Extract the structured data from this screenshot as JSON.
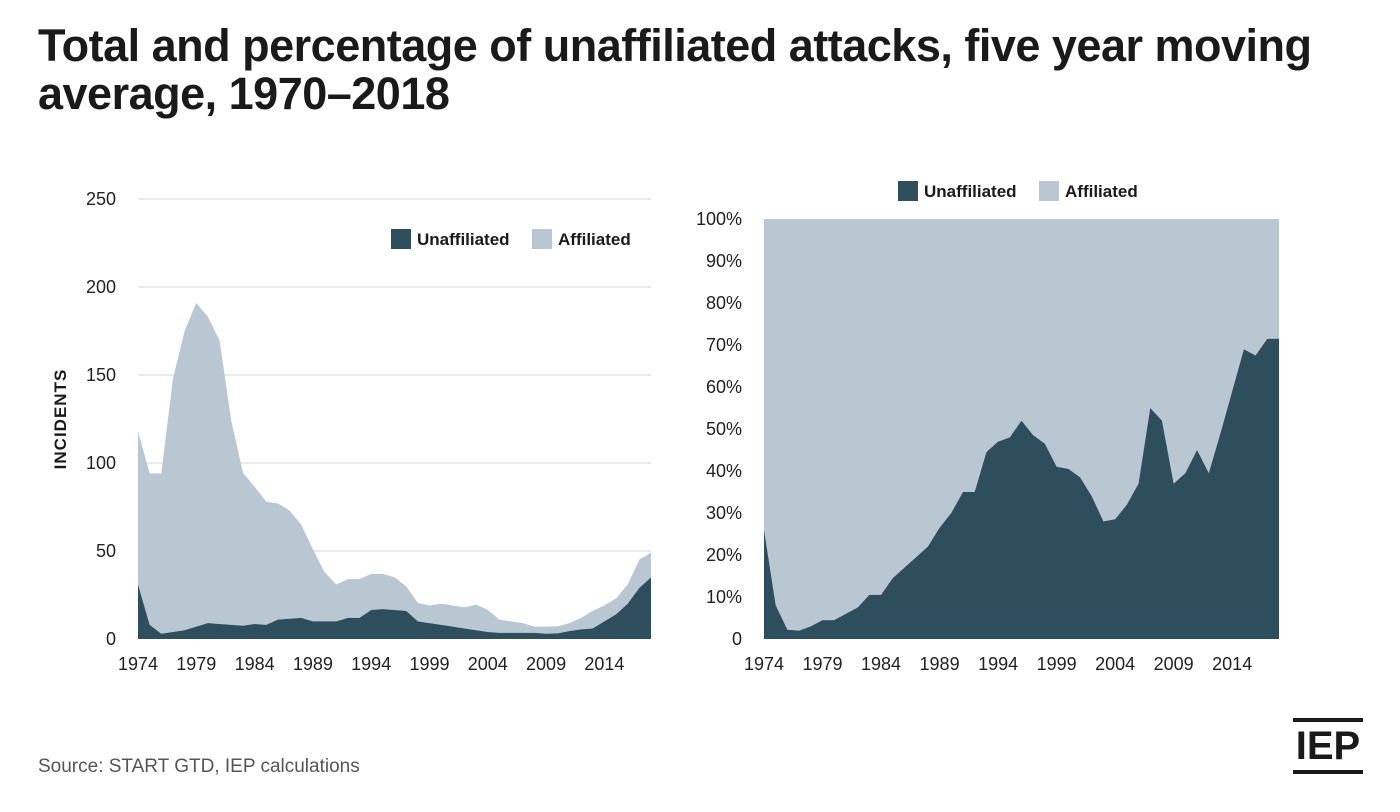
{
  "title": "Total and percentage of unaffiliated attacks, five year moving average, 1970–2018",
  "source": "Source: START GTD, IEP calculations",
  "logo_text": "IEP",
  "colors": {
    "unaffiliated": "#2e4e5e",
    "affiliated": "#b8c7d2",
    "grid": "#d6d6d6"
  },
  "chart_data": [
    {
      "type": "area",
      "stacked": true,
      "ylabel": "INCIDENTS",
      "ylim": [
        0,
        250
      ],
      "yticks": [
        0,
        50,
        100,
        150,
        200,
        250
      ],
      "ytick_labels": [
        "0",
        "50",
        "100",
        "150",
        "200",
        "250"
      ],
      "xlim": [
        1974,
        2018
      ],
      "xticks": [
        1974,
        1979,
        1984,
        1989,
        1994,
        1999,
        2004,
        2009,
        2014
      ],
      "xtick_labels": [
        "1974",
        "1979",
        "1984",
        "1989",
        "1994",
        "1999",
        "2004",
        "2009",
        "2014"
      ],
      "grid": true,
      "legend": "top-right",
      "x": [
        1974,
        1975,
        1976,
        1977,
        1978,
        1979,
        1980,
        1981,
        1982,
        1983,
        1984,
        1985,
        1986,
        1987,
        1988,
        1989,
        1990,
        1991,
        1992,
        1993,
        1994,
        1995,
        1996,
        1997,
        1998,
        1999,
        2000,
        2001,
        2002,
        2003,
        2004,
        2005,
        2006,
        2007,
        2008,
        2009,
        2010,
        2011,
        2012,
        2013,
        2014,
        2015,
        2016,
        2017,
        2018
      ],
      "series": [
        {
          "name": "Unaffiliated",
          "values": [
            31,
            8,
            3,
            4,
            5,
            7,
            9,
            8.5,
            8,
            7.5,
            8.5,
            8,
            11,
            11.5,
            12,
            10,
            10,
            10,
            12,
            12,
            16.5,
            17,
            16.5,
            16,
            10,
            9,
            8,
            7,
            6,
            5,
            4,
            3.5,
            3.5,
            3.5,
            3.5,
            3,
            3.2,
            4.5,
            5.5,
            6,
            10,
            14,
            20,
            29,
            35
          ]
        },
        {
          "name": "Affiliated",
          "values": [
            87,
            86,
            91,
            144,
            170,
            184,
            174,
            161,
            116,
            87,
            78,
            70,
            66,
            61.5,
            53,
            41,
            28,
            21,
            22,
            22,
            20.5,
            20,
            18.5,
            14,
            10.5,
            10,
            12,
            12,
            12,
            14.5,
            12.5,
            7.5,
            6.5,
            5.5,
            3.5,
            4,
            4,
            4.5,
            6.5,
            10,
            9,
            9,
            11,
            16,
            14
          ]
        }
      ]
    },
    {
      "type": "area",
      "stacked": true,
      "ylim": [
        0,
        100
      ],
      "yticks": [
        0,
        10,
        20,
        30,
        40,
        50,
        60,
        70,
        80,
        90,
        100
      ],
      "ytick_labels": [
        "0",
        "10%",
        "20%",
        "30%",
        "40%",
        "50%",
        "60%",
        "70%",
        "80%",
        "90%",
        "100%"
      ],
      "xlim": [
        1974,
        2018
      ],
      "xticks": [
        1974,
        1979,
        1984,
        1989,
        1994,
        1999,
        2004,
        2009,
        2014
      ],
      "xtick_labels": [
        "1974",
        "1979",
        "1984",
        "1989",
        "1994",
        "1999",
        "2004",
        "2009",
        "2014"
      ],
      "grid": false,
      "legend": "top-center",
      "x": [
        1974,
        1975,
        1976,
        1977,
        1978,
        1979,
        1980,
        1981,
        1982,
        1983,
        1984,
        1985,
        1986,
        1987,
        1988,
        1989,
        1990,
        1991,
        1992,
        1993,
        1994,
        1995,
        1996,
        1997,
        1998,
        1999,
        2000,
        2001,
        2002,
        2003,
        2004,
        2005,
        2006,
        2007,
        2008,
        2009,
        2010,
        2011,
        2012,
        2013,
        2014,
        2015,
        2016,
        2017,
        2018
      ],
      "series": [
        {
          "name": "Unaffiliated",
          "values": [
            26,
            8,
            2.2,
            2,
            3,
            4.5,
            4.5,
            6,
            7.5,
            10.5,
            10.5,
            14.5,
            17,
            19.5,
            22,
            26.5,
            30,
            35,
            35,
            44.5,
            47,
            48,
            52,
            48.5,
            46.5,
            41,
            40.5,
            38.5,
            34,
            28,
            28.5,
            32,
            37,
            55,
            52,
            37,
            39.5,
            45,
            39.5,
            49,
            59,
            69,
            67.5,
            71.5,
            71.5
          ]
        },
        {
          "name": "Affiliated",
          "values": [
            74,
            92,
            97.8,
            98,
            97,
            95.5,
            95.5,
            94,
            92.5,
            89.5,
            89.5,
            85.5,
            83,
            80.5,
            78,
            73.5,
            70,
            65,
            65,
            55.5,
            53,
            52,
            48,
            51.5,
            53.5,
            59,
            59.5,
            61.5,
            66,
            72,
            71.5,
            68,
            63,
            45,
            48,
            63,
            60.5,
            55,
            60.5,
            51,
            41,
            31,
            32.5,
            28.5,
            28.5
          ]
        }
      ]
    }
  ]
}
